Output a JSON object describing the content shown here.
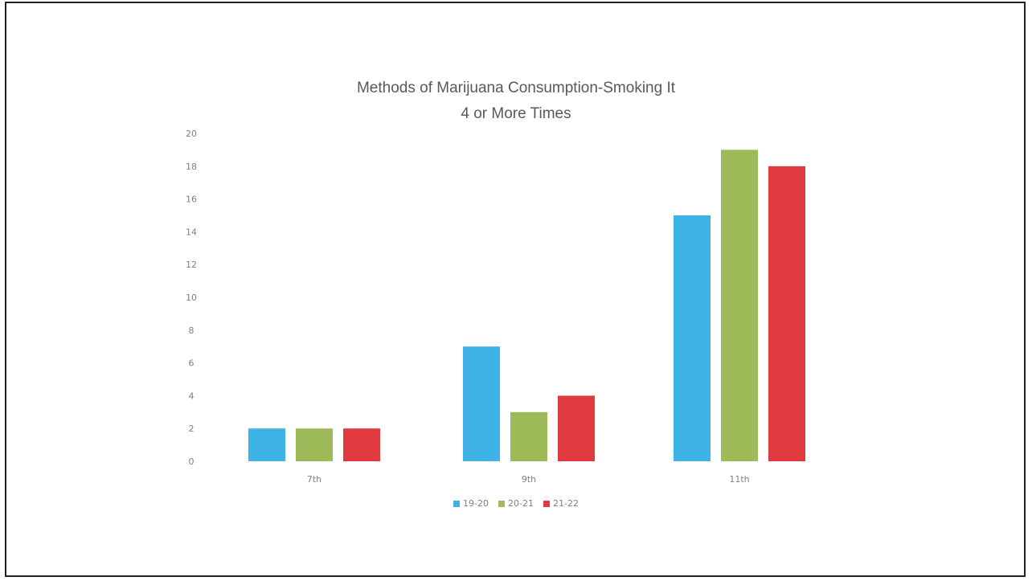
{
  "chart_data": {
    "type": "bar",
    "title_lines": [
      "Methods of Marijuana Consumption-Smoking It",
      "4 or More Times"
    ],
    "categories": [
      "7th",
      "9th",
      "11th"
    ],
    "series": [
      {
        "name": "19-20",
        "color": "#3fb3e6",
        "values": [
          2,
          7,
          15
        ]
      },
      {
        "name": "20-21",
        "color": "#9dbb59",
        "values": [
          2,
          3,
          19
        ]
      },
      {
        "name": "21-22",
        "color": "#e0393e",
        "values": [
          2,
          4,
          18
        ]
      }
    ],
    "y_ticks": [
      "0",
      "2",
      "4",
      "6",
      "8",
      "10",
      "12",
      "14",
      "16",
      "18",
      "20"
    ],
    "ylim": [
      0,
      20
    ],
    "xlabel": "",
    "ylabel": "",
    "grid": false,
    "legend_position": "bottom"
  }
}
